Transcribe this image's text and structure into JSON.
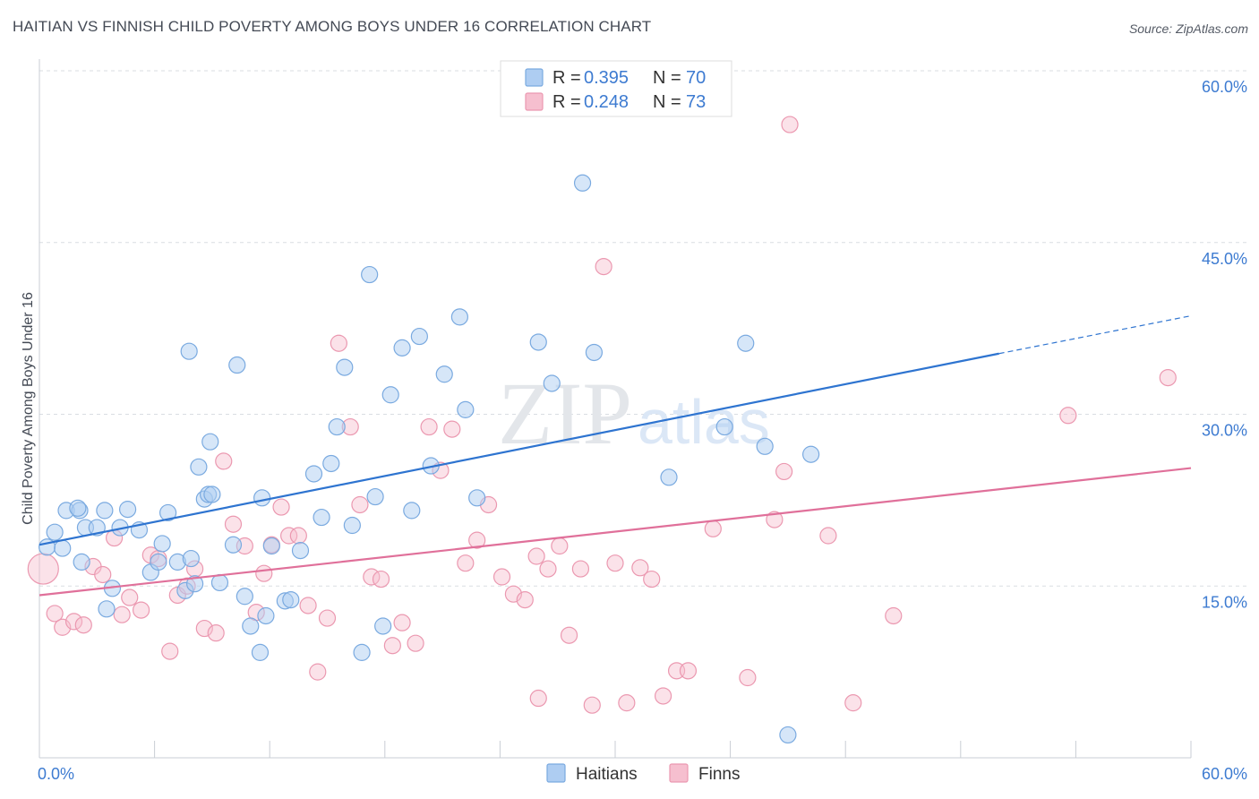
{
  "title": "HAITIAN VS FINNISH CHILD POVERTY AMONG BOYS UNDER 16 CORRELATION CHART",
  "source": "Source: ZipAtlas.com",
  "watermark": "ZIPatlas",
  "colors": {
    "haitians_fill": "#aecdf2",
    "haitians_stroke": "#7aaae0",
    "haitians_line": "#2e74d0",
    "finns_fill": "#f6bfcf",
    "finns_stroke": "#eb98b0",
    "finns_line": "#e0709a",
    "axis_label": "#3d7bd1"
  },
  "legend": {
    "rows": [
      {
        "r_label": "R = ",
        "r_value": "0.395",
        "n_label": "N = ",
        "n_value": "70"
      },
      {
        "r_label": "R = ",
        "r_value": "0.248",
        "n_label": "N = ",
        "n_value": "73"
      }
    ]
  },
  "bottom_legend": [
    "Haitians",
    "Finns"
  ],
  "chart_data": {
    "type": "scatter",
    "title": "HAITIAN VS FINNISH CHILD POVERTY AMONG BOYS UNDER 16 CORRELATION CHART",
    "xlabel": "",
    "ylabel": "Child Poverty Among Boys Under 16",
    "xlim": [
      0,
      60
    ],
    "ylim": [
      0,
      62
    ],
    "x_tick_labels": [
      "0.0%",
      "60.0%"
    ],
    "y_ticks": [
      15,
      30,
      45,
      60
    ],
    "y_tick_labels": [
      "15.0%",
      "30.0%",
      "45.0%",
      "60.0%"
    ],
    "grid": true,
    "legend_position": "top-center",
    "series": [
      {
        "name": "Haitians",
        "r": 0.395,
        "n": 70,
        "trend": {
          "x0": 0,
          "y0": 18.6,
          "x1": 50,
          "y1": 35.3,
          "dashed_to_x": 60,
          "dashed_to_y": 38.6
        },
        "points": [
          [
            0.4,
            18.4
          ],
          [
            1.2,
            18.3
          ],
          [
            0.8,
            19.7
          ],
          [
            1.4,
            21.6
          ],
          [
            2.1,
            21.6
          ],
          [
            2.4,
            20.1
          ],
          [
            3.0,
            20.1
          ],
          [
            3.4,
            21.6
          ],
          [
            4.2,
            20.1
          ],
          [
            4.6,
            21.7
          ],
          [
            5.2,
            19.9
          ],
          [
            2.2,
            17.1
          ],
          [
            3.8,
            14.8
          ],
          [
            3.5,
            13.0
          ],
          [
            5.8,
            16.2
          ],
          [
            6.2,
            17.1
          ],
          [
            6.4,
            18.7
          ],
          [
            6.7,
            21.4
          ],
          [
            7.2,
            17.1
          ],
          [
            7.6,
            14.6
          ],
          [
            8.1,
            15.2
          ],
          [
            7.9,
            17.4
          ],
          [
            8.6,
            22.6
          ],
          [
            8.8,
            23.0
          ],
          [
            8.3,
            25.4
          ],
          [
            8.9,
            27.6
          ],
          [
            7.8,
            35.5
          ],
          [
            9.4,
            15.3
          ],
          [
            10.1,
            18.6
          ],
          [
            10.7,
            14.1
          ],
          [
            11.0,
            11.5
          ],
          [
            11.5,
            9.2
          ],
          [
            11.8,
            12.4
          ],
          [
            12.1,
            18.5
          ],
          [
            12.8,
            13.7
          ],
          [
            13.1,
            13.8
          ],
          [
            13.6,
            18.1
          ],
          [
            14.3,
            24.8
          ],
          [
            14.7,
            21.0
          ],
          [
            15.2,
            25.7
          ],
          [
            15.5,
            28.9
          ],
          [
            15.9,
            34.1
          ],
          [
            16.3,
            20.3
          ],
          [
            16.8,
            9.2
          ],
          [
            17.2,
            42.2
          ],
          [
            17.5,
            22.8
          ],
          [
            17.9,
            11.5
          ],
          [
            18.3,
            31.7
          ],
          [
            18.9,
            35.8
          ],
          [
            19.4,
            21.6
          ],
          [
            19.8,
            36.8
          ],
          [
            20.4,
            25.5
          ],
          [
            21.1,
            33.5
          ],
          [
            21.9,
            38.5
          ],
          [
            22.2,
            30.4
          ],
          [
            22.8,
            22.7
          ],
          [
            10.3,
            34.3
          ],
          [
            11.6,
            22.7
          ],
          [
            26.0,
            36.3
          ],
          [
            26.7,
            32.7
          ],
          [
            28.3,
            50.2
          ],
          [
            28.9,
            35.4
          ],
          [
            32.8,
            24.5
          ],
          [
            35.7,
            28.9
          ],
          [
            36.8,
            36.2
          ],
          [
            37.8,
            27.2
          ],
          [
            39.0,
            2.0
          ],
          [
            40.2,
            26.5
          ],
          [
            2.0,
            21.8
          ],
          [
            9.0,
            23.0
          ]
        ]
      },
      {
        "name": "Finns",
        "r": 0.248,
        "n": 73,
        "trend": {
          "x0": 0,
          "y0": 14.2,
          "x1": 60,
          "y1": 25.3
        },
        "points": [
          [
            0.2,
            16.5
          ],
          [
            0.8,
            12.6
          ],
          [
            1.2,
            11.4
          ],
          [
            1.8,
            11.9
          ],
          [
            2.3,
            11.6
          ],
          [
            2.8,
            16.7
          ],
          [
            3.3,
            16.0
          ],
          [
            3.9,
            19.2
          ],
          [
            4.3,
            12.5
          ],
          [
            4.7,
            14.0
          ],
          [
            5.3,
            12.9
          ],
          [
            5.8,
            17.7
          ],
          [
            6.2,
            17.4
          ],
          [
            6.8,
            9.3
          ],
          [
            7.2,
            14.2
          ],
          [
            7.7,
            15.0
          ],
          [
            8.1,
            16.5
          ],
          [
            8.6,
            11.3
          ],
          [
            9.2,
            10.9
          ],
          [
            9.6,
            25.9
          ],
          [
            10.1,
            20.4
          ],
          [
            10.7,
            18.5
          ],
          [
            11.3,
            12.7
          ],
          [
            11.7,
            16.1
          ],
          [
            12.1,
            18.6
          ],
          [
            12.6,
            21.9
          ],
          [
            13.0,
            19.4
          ],
          [
            13.5,
            19.4
          ],
          [
            14.0,
            13.3
          ],
          [
            14.5,
            7.5
          ],
          [
            15.0,
            12.2
          ],
          [
            15.6,
            36.2
          ],
          [
            16.2,
            28.9
          ],
          [
            16.7,
            22.1
          ],
          [
            17.3,
            15.8
          ],
          [
            17.8,
            15.6
          ],
          [
            18.4,
            9.8
          ],
          [
            18.9,
            11.8
          ],
          [
            19.6,
            10.0
          ],
          [
            20.3,
            28.9
          ],
          [
            20.9,
            25.1
          ],
          [
            21.5,
            28.7
          ],
          [
            22.2,
            17.0
          ],
          [
            22.8,
            19.0
          ],
          [
            23.4,
            22.1
          ],
          [
            24.1,
            15.8
          ],
          [
            24.7,
            14.3
          ],
          [
            25.3,
            13.8
          ],
          [
            25.9,
            17.6
          ],
          [
            26.5,
            16.5
          ],
          [
            27.1,
            18.5
          ],
          [
            27.6,
            10.7
          ],
          [
            28.2,
            16.5
          ],
          [
            28.8,
            4.6
          ],
          [
            29.4,
            42.9
          ],
          [
            30.0,
            17.0
          ],
          [
            30.6,
            4.8
          ],
          [
            31.3,
            16.6
          ],
          [
            31.9,
            15.6
          ],
          [
            32.5,
            5.4
          ],
          [
            33.2,
            7.6
          ],
          [
            33.8,
            7.6
          ],
          [
            35.1,
            20.0
          ],
          [
            36.9,
            7.0
          ],
          [
            38.3,
            20.8
          ],
          [
            38.8,
            25.0
          ],
          [
            39.1,
            55.3
          ],
          [
            41.1,
            19.4
          ],
          [
            42.4,
            4.8
          ],
          [
            44.5,
            12.4
          ],
          [
            53.6,
            29.9
          ],
          [
            58.8,
            33.2
          ],
          [
            26.0,
            5.2
          ]
        ]
      }
    ]
  }
}
